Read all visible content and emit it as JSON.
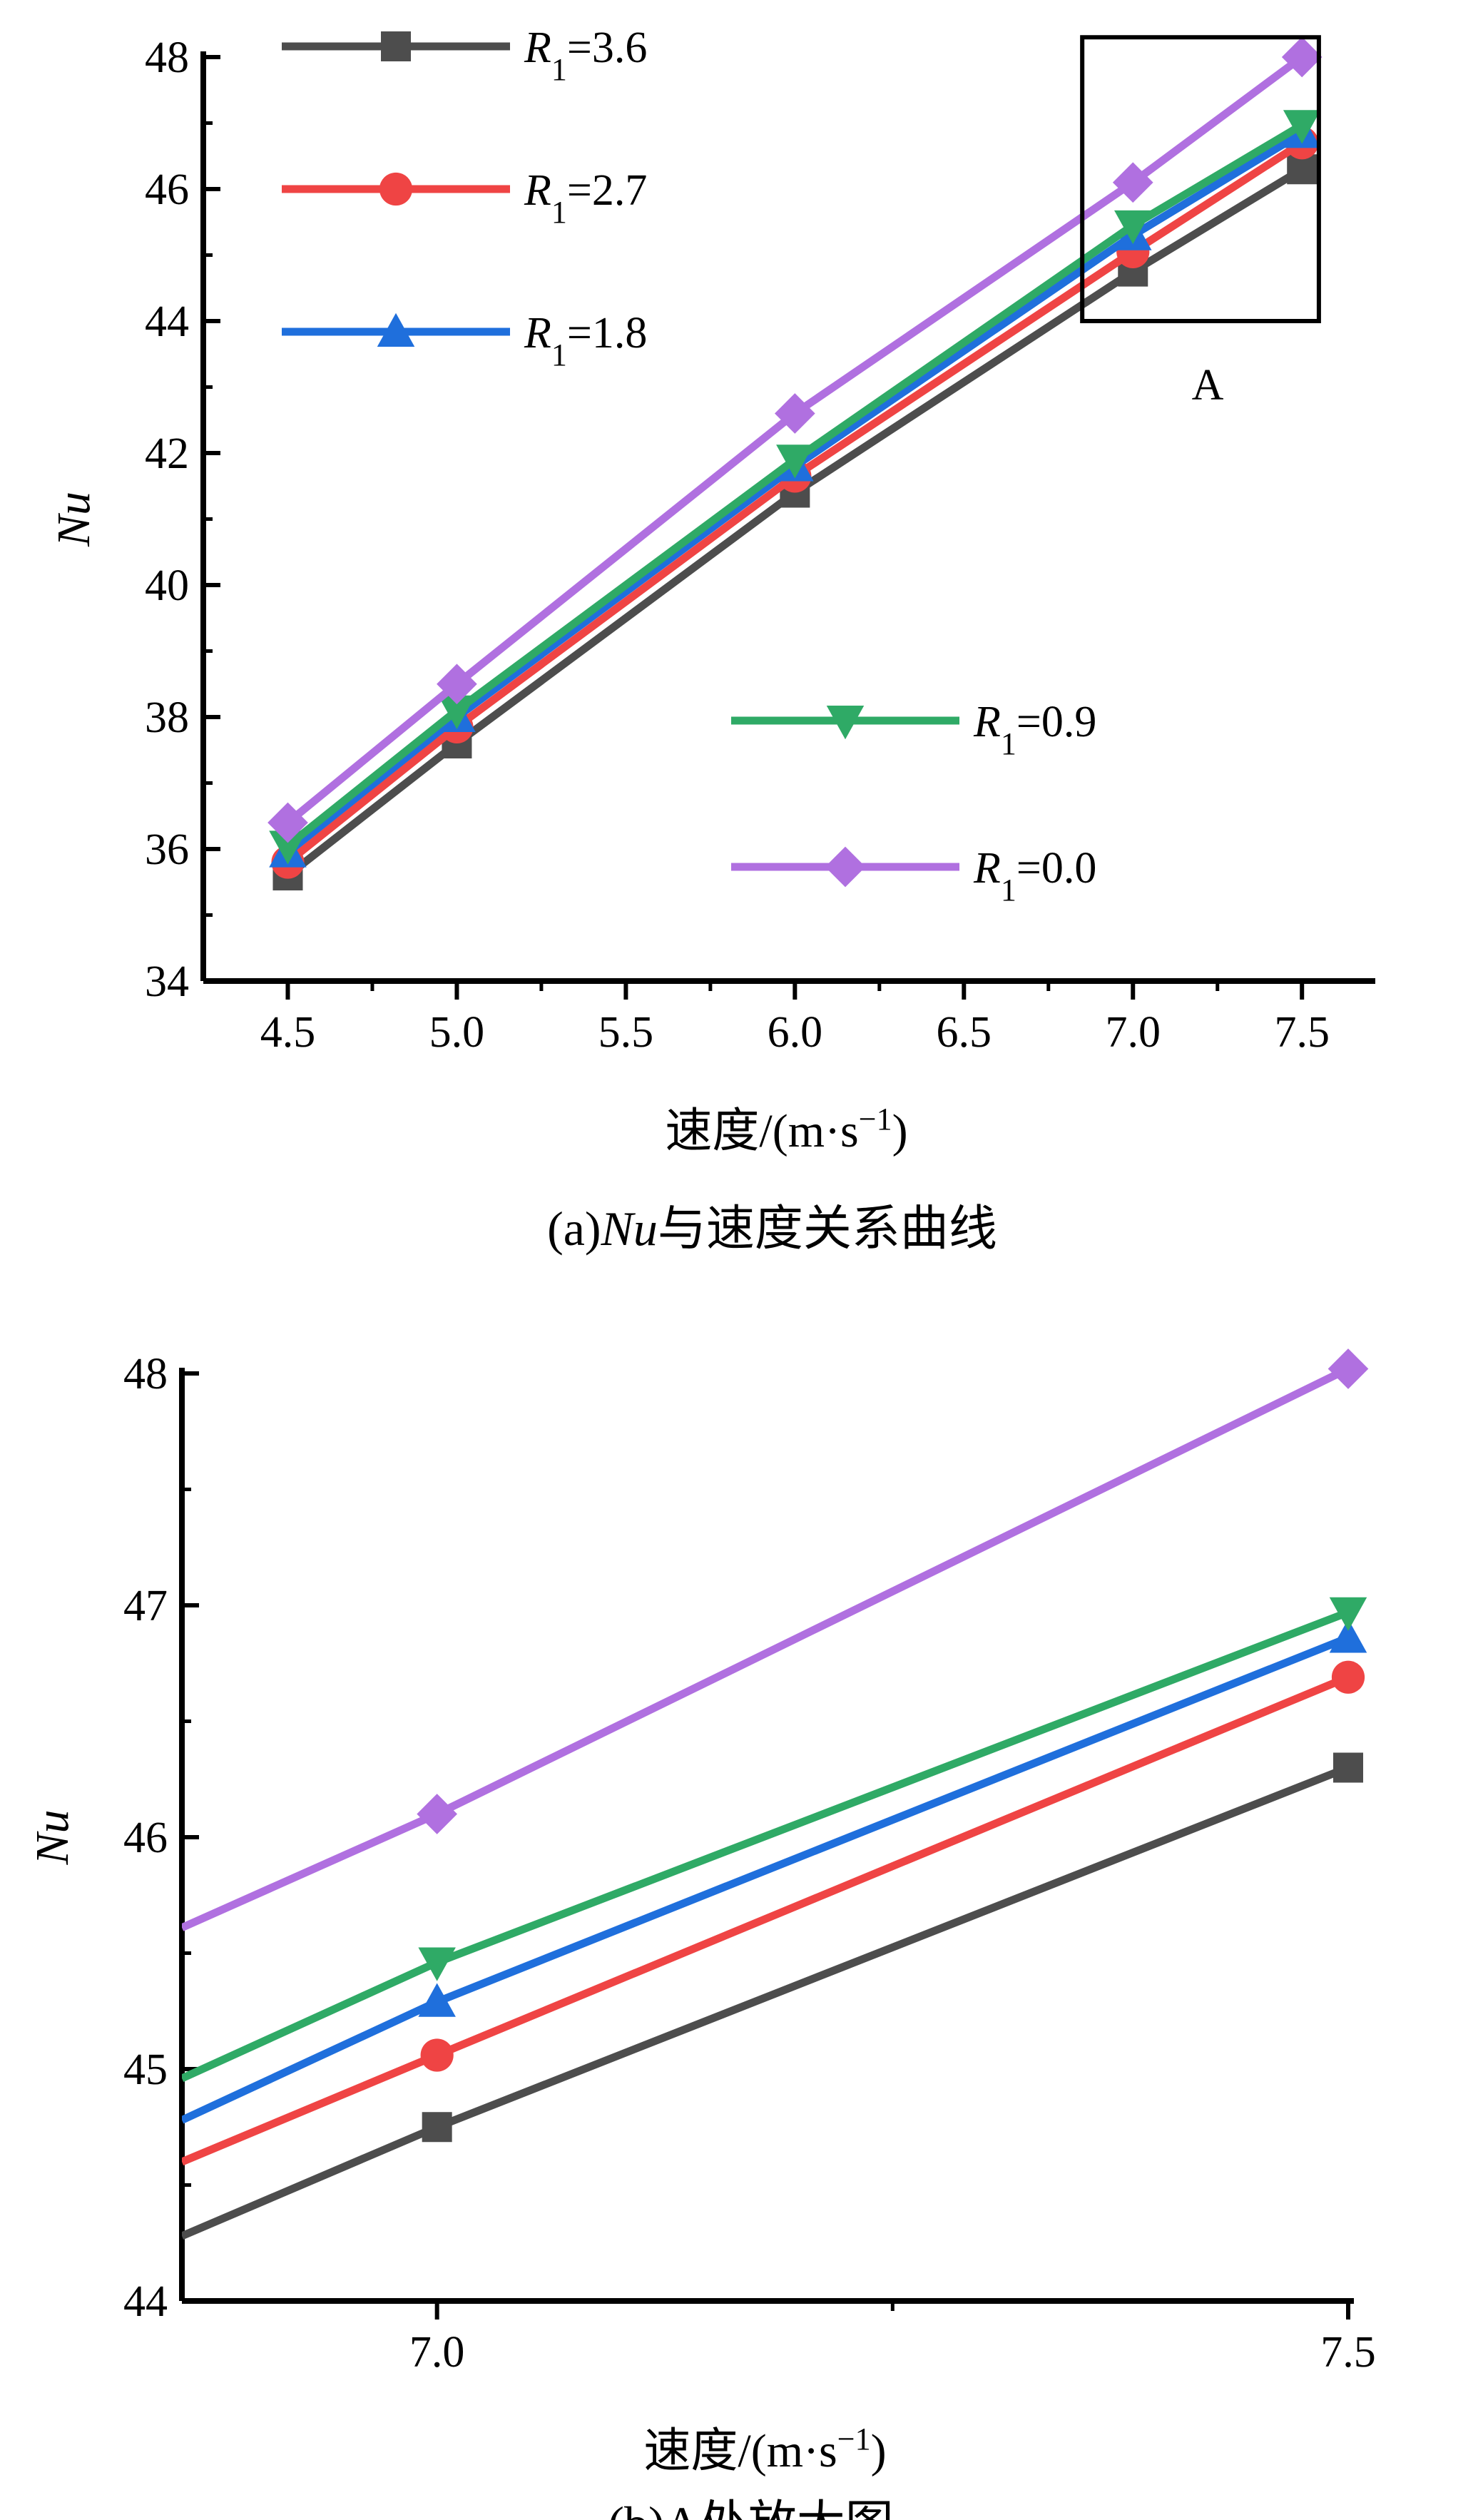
{
  "colors": {
    "R1=3.6": "#4d4d4d",
    "R1=2.7": "#ef4444",
    "R1=1.8": "#1f6fdc",
    "R1=0.9": "#2faa66",
    "R1=0.0": "#b070e0"
  },
  "chart_data": [
    {
      "type": "line",
      "caption_prefix": "(a)",
      "caption_italic": "Nu",
      "caption_suffix": "与速度关系曲线",
      "xlabel_main": "速度/(m·s",
      "xlabel_sup": "−1",
      "xlabel_close": ")",
      "ylabel": "Nu",
      "xlim": [
        4.25,
        7.7
      ],
      "ylim": [
        34,
        48
      ],
      "xticks": [
        4.5,
        5.0,
        5.5,
        6.0,
        6.5,
        7.0,
        7.5
      ],
      "xtick_labels": [
        "4.5",
        "5.0",
        "5.5",
        "6.0",
        "6.5",
        "7.0",
        "7.5"
      ],
      "yticks": [
        34,
        36,
        38,
        40,
        42,
        44,
        46,
        48
      ],
      "ytick_labels": [
        "34",
        "36",
        "38",
        "40",
        "42",
        "44",
        "46",
        "48"
      ],
      "x": [
        4.5,
        5.0,
        6.0,
        7.0,
        7.5
      ],
      "series": [
        {
          "label_var": "R",
          "label_sub": "1",
          "label_val": "=3.6",
          "marker": "square",
          "color_key": "R1=3.6",
          "values": [
            35.6,
            37.6,
            41.4,
            44.75,
            46.3
          ]
        },
        {
          "label_var": "R",
          "label_sub": "1",
          "label_val": "=2.7",
          "marker": "circle",
          "color_key": "R1=2.7",
          "values": [
            35.8,
            37.85,
            41.65,
            45.05,
            46.7
          ]
        },
        {
          "label_var": "R",
          "label_sub": "1",
          "label_val": "=1.8",
          "marker": "triangle-up",
          "color_key": "R1=1.8",
          "values": [
            35.95,
            38.0,
            41.8,
            45.3,
            46.85
          ]
        },
        {
          "label_var": "R",
          "label_sub": "1",
          "label_val": "=0.9",
          "marker": "triangle-down",
          "color_key": "R1=0.9",
          "values": [
            36.05,
            38.1,
            41.9,
            45.45,
            46.97
          ]
        },
        {
          "label_var": "R",
          "label_sub": "1",
          "label_val": "=0.0",
          "marker": "diamond",
          "color_key": "R1=0.0",
          "values": [
            36.4,
            38.5,
            42.6,
            46.1,
            48.0
          ]
        }
      ],
      "annotation": {
        "label": "A",
        "x_range": [
          6.85,
          7.55
        ],
        "y_range": [
          44.0,
          48.3
        ]
      }
    },
    {
      "type": "line",
      "caption_prefix": "(b)",
      "caption_italic": "",
      "caption_suffix": "A处放大图",
      "xlabel_main": "速度/(m·s",
      "xlabel_sup": "−1",
      "xlabel_close": ")",
      "ylabel": "Nu",
      "xlim": [
        6.86,
        7.5
      ],
      "ylim": [
        44,
        48
      ],
      "xticks": [
        7.0,
        7.5
      ],
      "xtick_labels": [
        "7.0",
        "7.5"
      ],
      "yticks": [
        44,
        45,
        46,
        47,
        48
      ],
      "ytick_labels": [
        "44",
        "45",
        "46",
        "47",
        "48"
      ],
      "x": [
        6.86,
        7.0,
        7.5
      ],
      "series": [
        {
          "marker": "square",
          "color_key": "R1=3.6",
          "values": [
            44.28,
            44.75,
            46.3
          ]
        },
        {
          "marker": "circle",
          "color_key": "R1=2.7",
          "values": [
            44.6,
            45.06,
            46.69
          ]
        },
        {
          "marker": "triangle-up",
          "color_key": "R1=1.8",
          "values": [
            44.78,
            45.29,
            46.86
          ]
        },
        {
          "marker": "triangle-down",
          "color_key": "R1=0.9",
          "values": [
            44.96,
            45.46,
            46.97
          ]
        },
        {
          "marker": "diamond",
          "color_key": "R1=0.0",
          "values": [
            45.61,
            46.1,
            48.02
          ]
        }
      ]
    }
  ]
}
